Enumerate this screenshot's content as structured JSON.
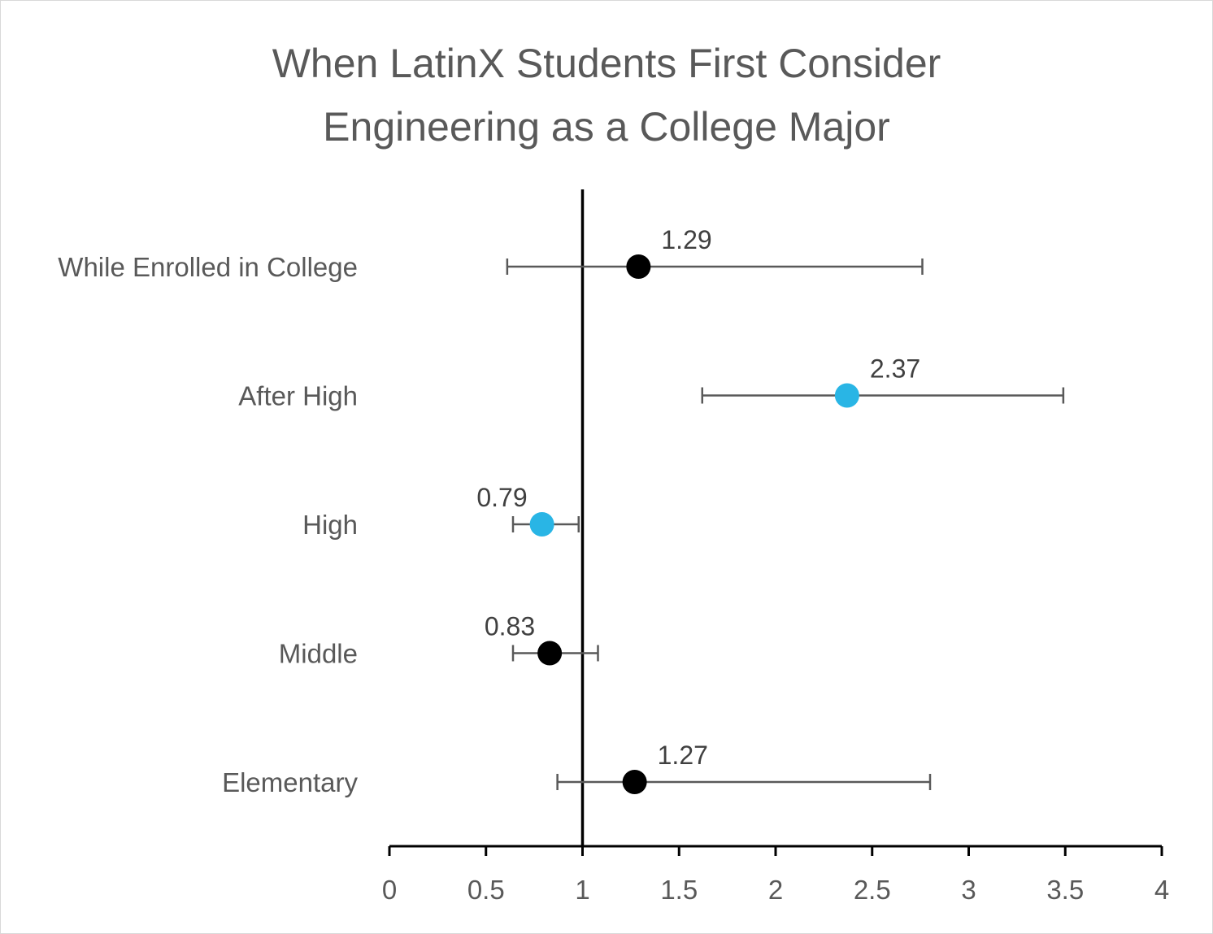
{
  "chart_data": {
    "type": "scatter",
    "title_lines": [
      "When LatinX Students First Consider",
      "Engineering as a College Major"
    ],
    "xlabel": "",
    "ylabel": "",
    "xlim": [
      0,
      4
    ],
    "x_ticks": [
      "0",
      "0.5",
      "1",
      "1.5",
      "2",
      "2.5",
      "3",
      "3.5",
      "4"
    ],
    "x_tick_values": [
      0,
      0.5,
      1,
      1.5,
      2,
      2.5,
      3,
      3.5,
      4
    ],
    "reference_line_x": 1,
    "grid": false,
    "categories": [
      "While Enrolled in College",
      "After High",
      "High",
      "Middle",
      "Elementary"
    ],
    "points": [
      {
        "category": "While Enrolled in College",
        "value": 1.29,
        "label": "1.29",
        "ci_low": 0.61,
        "ci_high": 2.76,
        "color": "#000000"
      },
      {
        "category": "After High",
        "value": 2.37,
        "label": "2.37",
        "ci_low": 1.62,
        "ci_high": 3.49,
        "color": "#29b5e5"
      },
      {
        "category": "High",
        "value": 0.79,
        "label": "0.79",
        "ci_low": 0.64,
        "ci_high": 0.98,
        "color": "#29b5e5"
      },
      {
        "category": "Middle",
        "value": 0.83,
        "label": "0.83",
        "ci_low": 0.64,
        "ci_high": 1.08,
        "color": "#000000"
      },
      {
        "category": "Elementary",
        "value": 1.27,
        "label": "1.27",
        "ci_low": 0.87,
        "ci_high": 2.8,
        "color": "#000000"
      }
    ]
  }
}
